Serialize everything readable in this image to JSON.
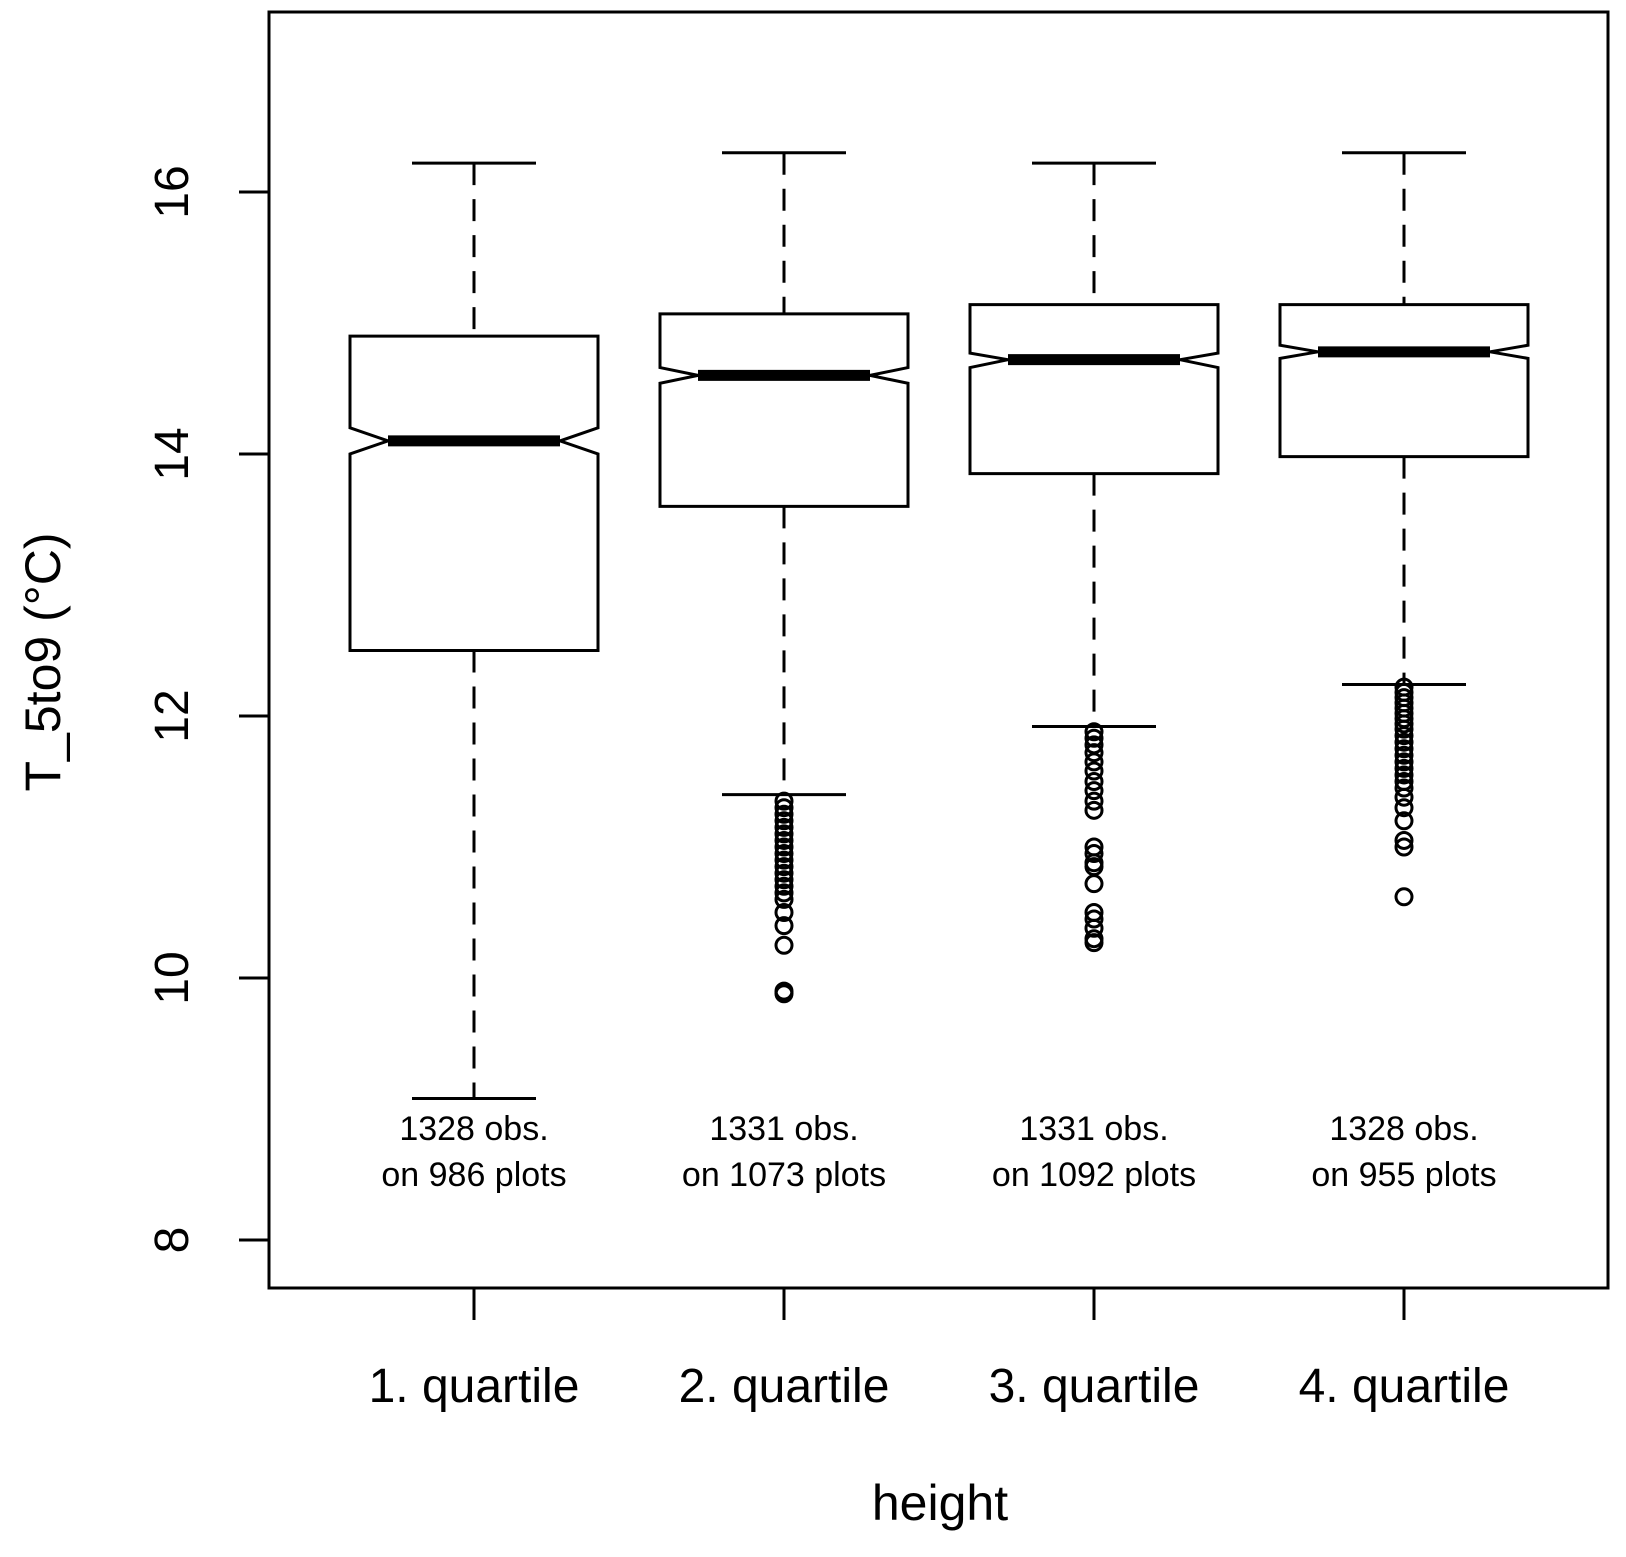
{
  "chart_data": {
    "type": "boxplot",
    "notched": true,
    "xlabel": "height",
    "ylabel": "T_5to9 (°C)",
    "ylim": [
      7.6,
      17.4
    ],
    "yticks": [
      8,
      10,
      12,
      14,
      16
    ],
    "categories": [
      "1. quartile",
      "2. quartile",
      "3. quartile",
      "4. quartile"
    ],
    "boxes": [
      {
        "category": "1. quartile",
        "whisker_low": 9.08,
        "q1": 12.5,
        "median": 14.1,
        "q3": 14.9,
        "whisker_high": 16.22,
        "notch_low": 14.0,
        "notch_high": 14.2,
        "outliers": [],
        "note_line1": "1328 obs.",
        "note_line2": "on 986 plots"
      },
      {
        "category": "2. quartile",
        "whisker_low": 11.4,
        "q1": 13.6,
        "median": 14.6,
        "q3": 15.07,
        "whisker_high": 16.3,
        "notch_low": 14.54,
        "notch_high": 14.66,
        "outliers": [
          11.35,
          11.3,
          11.25,
          11.2,
          11.15,
          11.1,
          11.05,
          11.0,
          10.95,
          10.9,
          10.85,
          10.8,
          10.75,
          10.7,
          10.65,
          10.6,
          10.5,
          10.4,
          10.25,
          9.9,
          9.88
        ],
        "note_line1": "1331 obs.",
        "note_line2": "on 1073 plots"
      },
      {
        "category": "3. quartile",
        "whisker_low": 11.92,
        "q1": 13.85,
        "median": 14.72,
        "q3": 15.14,
        "whisker_high": 16.22,
        "notch_low": 14.66,
        "notch_high": 14.77,
        "outliers": [
          11.88,
          11.83,
          11.78,
          11.72,
          11.65,
          11.58,
          11.5,
          11.43,
          11.35,
          11.28,
          11.0,
          10.95,
          10.88,
          10.85,
          10.72,
          10.5,
          10.45,
          10.38,
          10.3,
          10.27
        ],
        "note_line1": "1331 obs.",
        "note_line2": "on 1092 plots"
      },
      {
        "category": "4. quartile",
        "whisker_low": 12.24,
        "q1": 13.98,
        "median": 14.78,
        "q3": 15.14,
        "whisker_high": 16.3,
        "notch_low": 14.73,
        "notch_high": 14.83,
        "outliers": [
          12.22,
          12.18,
          12.14,
          12.1,
          12.06,
          12.02,
          11.98,
          11.94,
          11.9,
          11.85,
          11.8,
          11.75,
          11.7,
          11.65,
          11.6,
          11.55,
          11.5,
          11.45,
          11.38,
          11.3,
          11.2,
          11.05,
          11.0,
          10.62
        ],
        "note_line1": "1328 obs.",
        "note_line2": "on 955 plots"
      }
    ]
  }
}
